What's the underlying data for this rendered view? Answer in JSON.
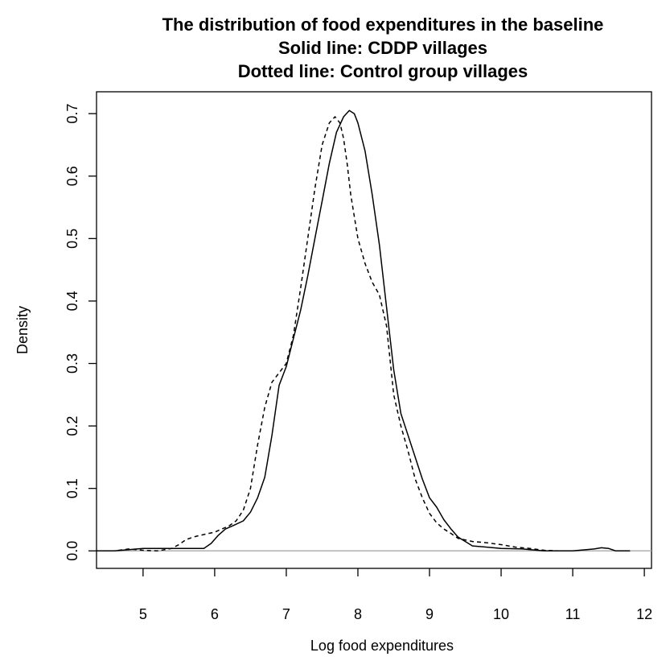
{
  "chart_data": {
    "type": "line",
    "title_lines": [
      "The distribution of food expenditures in the baseline",
      "Solid line: CDDP villages",
      "Dotted line: Control group villages"
    ],
    "xlabel": "Log food expenditures",
    "ylabel": "Density",
    "xlim": [
      4.35,
      12.1
    ],
    "ylim": [
      -0.028,
      0.735
    ],
    "x_ticks": [
      5,
      6,
      7,
      8,
      9,
      10,
      11,
      12
    ],
    "y_ticks": [
      0.0,
      0.1,
      0.2,
      0.3,
      0.4,
      0.5,
      0.6,
      0.7
    ],
    "x_tick_labels": [
      "5",
      "6",
      "7",
      "8",
      "9",
      "10",
      "11",
      "12"
    ],
    "y_tick_labels": [
      "0.0",
      "0.1",
      "0.2",
      "0.3",
      "0.4",
      "0.5",
      "0.6",
      "0.7"
    ],
    "baseline": 0,
    "grid": false,
    "colors": {
      "line": "#000000",
      "baseline": "#b0b0b0"
    },
    "series": [
      {
        "style": "solid",
        "x": [
          4.35,
          4.6,
          4.8,
          5.0,
          5.3,
          5.6,
          5.85,
          5.95,
          6.05,
          6.15,
          6.25,
          6.4,
          6.5,
          6.6,
          6.7,
          6.8,
          6.9,
          7.0,
          7.1,
          7.2,
          7.3,
          7.4,
          7.5,
          7.6,
          7.7,
          7.8,
          7.88,
          7.95,
          8.0,
          8.1,
          8.2,
          8.3,
          8.4,
          8.5,
          8.6,
          8.7,
          8.8,
          8.9,
          9.0,
          9.1,
          9.2,
          9.3,
          9.4,
          9.5,
          9.6,
          9.8,
          10.0,
          10.3,
          10.6,
          11.0,
          11.3,
          11.4,
          11.5,
          11.6,
          11.8
        ],
        "y": [
          0.0,
          0.0,
          0.002,
          0.004,
          0.004,
          0.004,
          0.004,
          0.012,
          0.025,
          0.035,
          0.04,
          0.048,
          0.062,
          0.085,
          0.118,
          0.185,
          0.265,
          0.295,
          0.34,
          0.385,
          0.44,
          0.5,
          0.56,
          0.62,
          0.67,
          0.695,
          0.705,
          0.7,
          0.685,
          0.64,
          0.57,
          0.49,
          0.39,
          0.29,
          0.22,
          0.185,
          0.15,
          0.115,
          0.085,
          0.07,
          0.05,
          0.035,
          0.022,
          0.015,
          0.008,
          0.006,
          0.004,
          0.003,
          0.0,
          0.0,
          0.003,
          0.005,
          0.004,
          0.0,
          0.0
        ]
      },
      {
        "style": "dashed",
        "x": [
          4.35,
          4.6,
          4.8,
          5.0,
          5.2,
          5.4,
          5.5,
          5.6,
          5.7,
          5.8,
          6.0,
          6.1,
          6.2,
          6.3,
          6.4,
          6.5,
          6.6,
          6.7,
          6.8,
          6.9,
          7.0,
          7.1,
          7.2,
          7.3,
          7.4,
          7.5,
          7.6,
          7.68,
          7.75,
          7.8,
          7.85,
          7.9,
          8.0,
          8.1,
          8.2,
          8.3,
          8.4,
          8.5,
          8.6,
          8.7,
          8.8,
          8.9,
          9.0,
          9.1,
          9.2,
          9.3,
          9.4,
          9.6,
          9.8,
          10.0,
          10.2,
          10.4,
          10.6,
          10.8,
          11.0
        ],
        "y": [
          0.0,
          0.0,
          0.003,
          0.001,
          0.0,
          0.004,
          0.01,
          0.018,
          0.022,
          0.025,
          0.03,
          0.035,
          0.04,
          0.048,
          0.065,
          0.1,
          0.17,
          0.23,
          0.27,
          0.285,
          0.3,
          0.345,
          0.42,
          0.5,
          0.58,
          0.65,
          0.685,
          0.695,
          0.685,
          0.66,
          0.62,
          0.57,
          0.5,
          0.46,
          0.43,
          0.41,
          0.36,
          0.25,
          0.2,
          0.16,
          0.115,
          0.085,
          0.06,
          0.045,
          0.035,
          0.028,
          0.02,
          0.015,
          0.013,
          0.01,
          0.006,
          0.004,
          0.001,
          0.0,
          0.0
        ]
      }
    ]
  }
}
